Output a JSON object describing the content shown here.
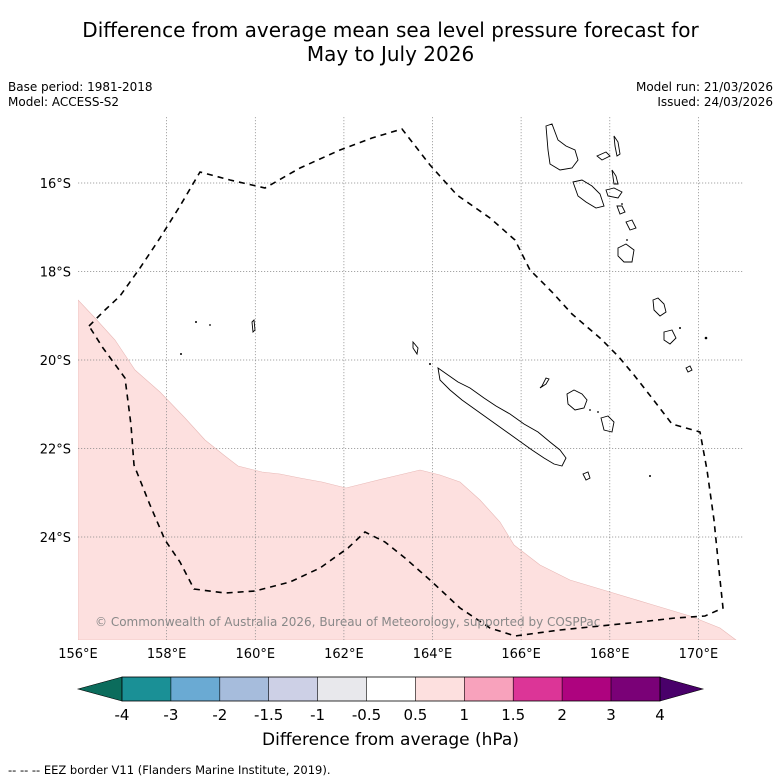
{
  "title_line1": "Difference from average mean sea level pressure forecast for",
  "title_line2": "May to July 2026",
  "base_period": "Base period: 1981-2018",
  "model": "Model: ACCESS-S2",
  "model_run": "Model run: 21/03/2026",
  "issued": "Issued: 24/03/2026",
  "copyright": "© Commonwealth of Australia 2026, Bureau of Meteorology, supported by COSPPac",
  "lon_labels": [
    "156°E",
    "158°E",
    "160°E",
    "162°E",
    "164°E",
    "166°E",
    "168°E",
    "170°E"
  ],
  "lat_labels": [
    "16°S",
    "18°S",
    "20°S",
    "22°S",
    "24°S"
  ],
  "colorbar": {
    "title": "Difference from average (hPa)",
    "tick_labels": [
      "-4",
      "-3",
      "-2",
      "-1.5",
      "-1",
      "-0.5",
      "0.5",
      "1",
      "1.5",
      "2",
      "3",
      "4"
    ],
    "colors": [
      "#1a9096",
      "#6aaad3",
      "#a6bcdc",
      "#cdd0e6",
      "#e8e8ec",
      "#ffffff",
      "#fde0df",
      "#f8a2bc",
      "#dc3597",
      "#ae037f",
      "#7a0177"
    ],
    "under_color": "#0b6c5c",
    "over_color": "#49006a"
  },
  "anomaly_fill_color": "#fde0df",
  "legend_footer": "--  --  -- EEZ border V11 (Flanders Marine Institute, 2019)."
}
